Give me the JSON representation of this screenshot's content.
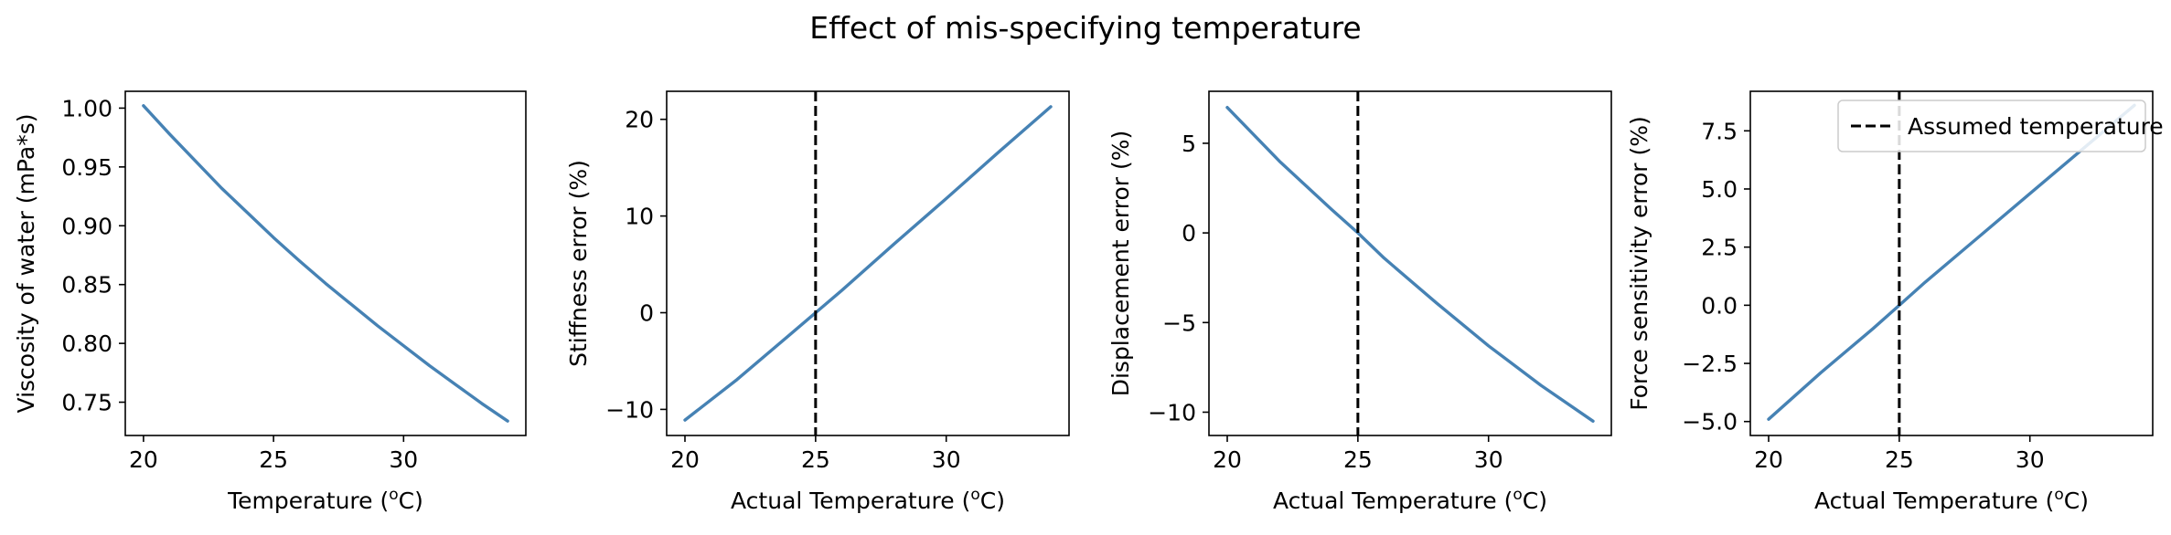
{
  "figure": {
    "title": "Effect of mis-specifying temperature"
  },
  "chart_data": [
    {
      "type": "line",
      "xlabel": "Temperature (",
      "xlabel_sup": "o",
      "xlabel_tail": "C)",
      "ylabel": "Viscosity of water (mPa*s)",
      "xlim": [
        19.3,
        34.7
      ],
      "ylim": [
        0.7217,
        1.0143
      ],
      "xticks": [
        20,
        25,
        30
      ],
      "yticks": [
        0.75,
        0.8,
        0.85,
        0.9,
        0.95,
        1.0
      ],
      "ytick_labels": [
        "0.75",
        "0.80",
        "0.85",
        "0.90",
        "0.95",
        "1.00"
      ],
      "grid": false,
      "series": [
        {
          "x": [
            20,
            21,
            22,
            23,
            24,
            25,
            26,
            27,
            28,
            29,
            30,
            31,
            32,
            33,
            34
          ],
          "y": [
            1.002,
            0.978,
            0.955,
            0.932,
            0.911,
            0.89,
            0.87,
            0.851,
            0.833,
            0.815,
            0.798,
            0.781,
            0.765,
            0.749,
            0.734
          ],
          "color": "#4682b4"
        }
      ]
    },
    {
      "type": "line",
      "xlabel": "Actual Temperature (",
      "xlabel_sup": "o",
      "xlabel_tail": "C)",
      "ylabel": "Stiffness error (%)",
      "xlim": [
        19.3,
        34.7
      ],
      "ylim": [
        -12.7,
        22.9
      ],
      "xticks": [
        20,
        25,
        30
      ],
      "yticks": [
        -10,
        0,
        10,
        20
      ],
      "ytick_labels": [
        "−10",
        "0",
        "10",
        "20"
      ],
      "vline": 25,
      "grid": false,
      "series": [
        {
          "x": [
            20,
            22,
            24,
            25,
            26,
            28,
            30,
            32,
            34
          ],
          "y": [
            -11.1,
            -6.9,
            -2.3,
            0.0,
            2.3,
            7.1,
            11.8,
            16.6,
            21.3
          ],
          "color": "#4682b4"
        }
      ]
    },
    {
      "type": "line",
      "xlabel": "Actual Temperature (",
      "xlabel_sup": "o",
      "xlabel_tail": "C)",
      "ylabel": "Displacement error (%)",
      "xlim": [
        19.3,
        34.7
      ],
      "ylim": [
        -11.3,
        7.9
      ],
      "xticks": [
        20,
        25,
        30
      ],
      "yticks": [
        -10,
        -5,
        0,
        5
      ],
      "ytick_labels": [
        "−10",
        "−5",
        "0",
        "5"
      ],
      "vline": 25,
      "grid": false,
      "series": [
        {
          "x": [
            20,
            22,
            24,
            25,
            26,
            28,
            30,
            32,
            34
          ],
          "y": [
            7.0,
            4.0,
            1.3,
            0.0,
            -1.4,
            -3.9,
            -6.3,
            -8.5,
            -10.5
          ],
          "color": "#4682b4"
        }
      ]
    },
    {
      "type": "line",
      "xlabel": "Actual Temperature (",
      "xlabel_sup": "o",
      "xlabel_tail": "C)",
      "ylabel": "Force sensitivity error (%)",
      "xlim": [
        19.3,
        34.7
      ],
      "ylim": [
        -5.6,
        9.2
      ],
      "xticks": [
        20,
        25,
        30
      ],
      "yticks": [
        -5.0,
        -2.5,
        0.0,
        2.5,
        5.0,
        7.5
      ],
      "ytick_labels": [
        "−5.0",
        "−2.5",
        "0.0",
        "2.5",
        "5.0",
        "7.5"
      ],
      "vline": 25,
      "grid": false,
      "legend": {
        "position": "top-right",
        "entries": [
          {
            "label": "Assumed temperature",
            "style": "dashed",
            "color": "#000000"
          }
        ]
      },
      "series": [
        {
          "x": [
            20,
            22,
            24,
            25,
            26,
            28,
            30,
            32,
            34
          ],
          "y": [
            -4.9,
            -2.9,
            -1.0,
            0.0,
            1.0,
            2.9,
            4.8,
            6.7,
            8.6
          ],
          "color": "#4682b4"
        }
      ]
    }
  ]
}
